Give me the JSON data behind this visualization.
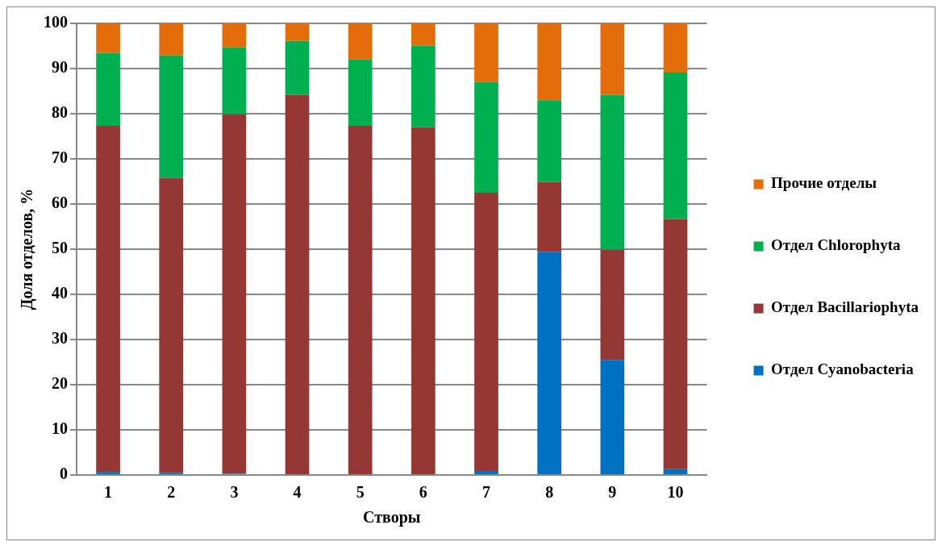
{
  "chart_data": {
    "type": "bar",
    "stacked": true,
    "xlabel": "Створы",
    "ylabel": "Доля отделов, %",
    "categories": [
      "1",
      "2",
      "3",
      "4",
      "5",
      "6",
      "7",
      "8",
      "9",
      "10"
    ],
    "series": [
      {
        "name": "Отдел Cyanobacteria",
        "color": "#0070c0",
        "values": [
          0.7,
          0.5,
          0.3,
          null,
          null,
          null,
          0.9,
          49.4,
          25.5,
          1.3
        ]
      },
      {
        "name": "Отдел Bacillariophyta",
        "color": "#953735",
        "values": [
          76.6,
          65.3,
          79.6,
          84.2,
          77.3,
          77.0,
          61.6,
          15.5,
          24.4,
          55.4
        ]
      },
      {
        "name": "Отдел Chlorophyta",
        "color": "#00b050",
        "values": [
          16.2,
          27.1,
          14.8,
          11.9,
          14.7,
          18.1,
          24.5,
          18.1,
          34.3,
          32.4
        ]
      },
      {
        "name": "Прочие отделы",
        "color": "#e46c0a",
        "values": [
          6.5,
          7.1,
          5.3,
          3.9,
          8.0,
          4.9,
          13.0,
          17.0,
          15.8,
          10.9
        ]
      }
    ],
    "ylim": [
      0,
      100
    ],
    "yticks": [
      0,
      10,
      20,
      30,
      40,
      50,
      60,
      70,
      80,
      90,
      100
    ],
    "grid": "y",
    "legend": "right"
  }
}
